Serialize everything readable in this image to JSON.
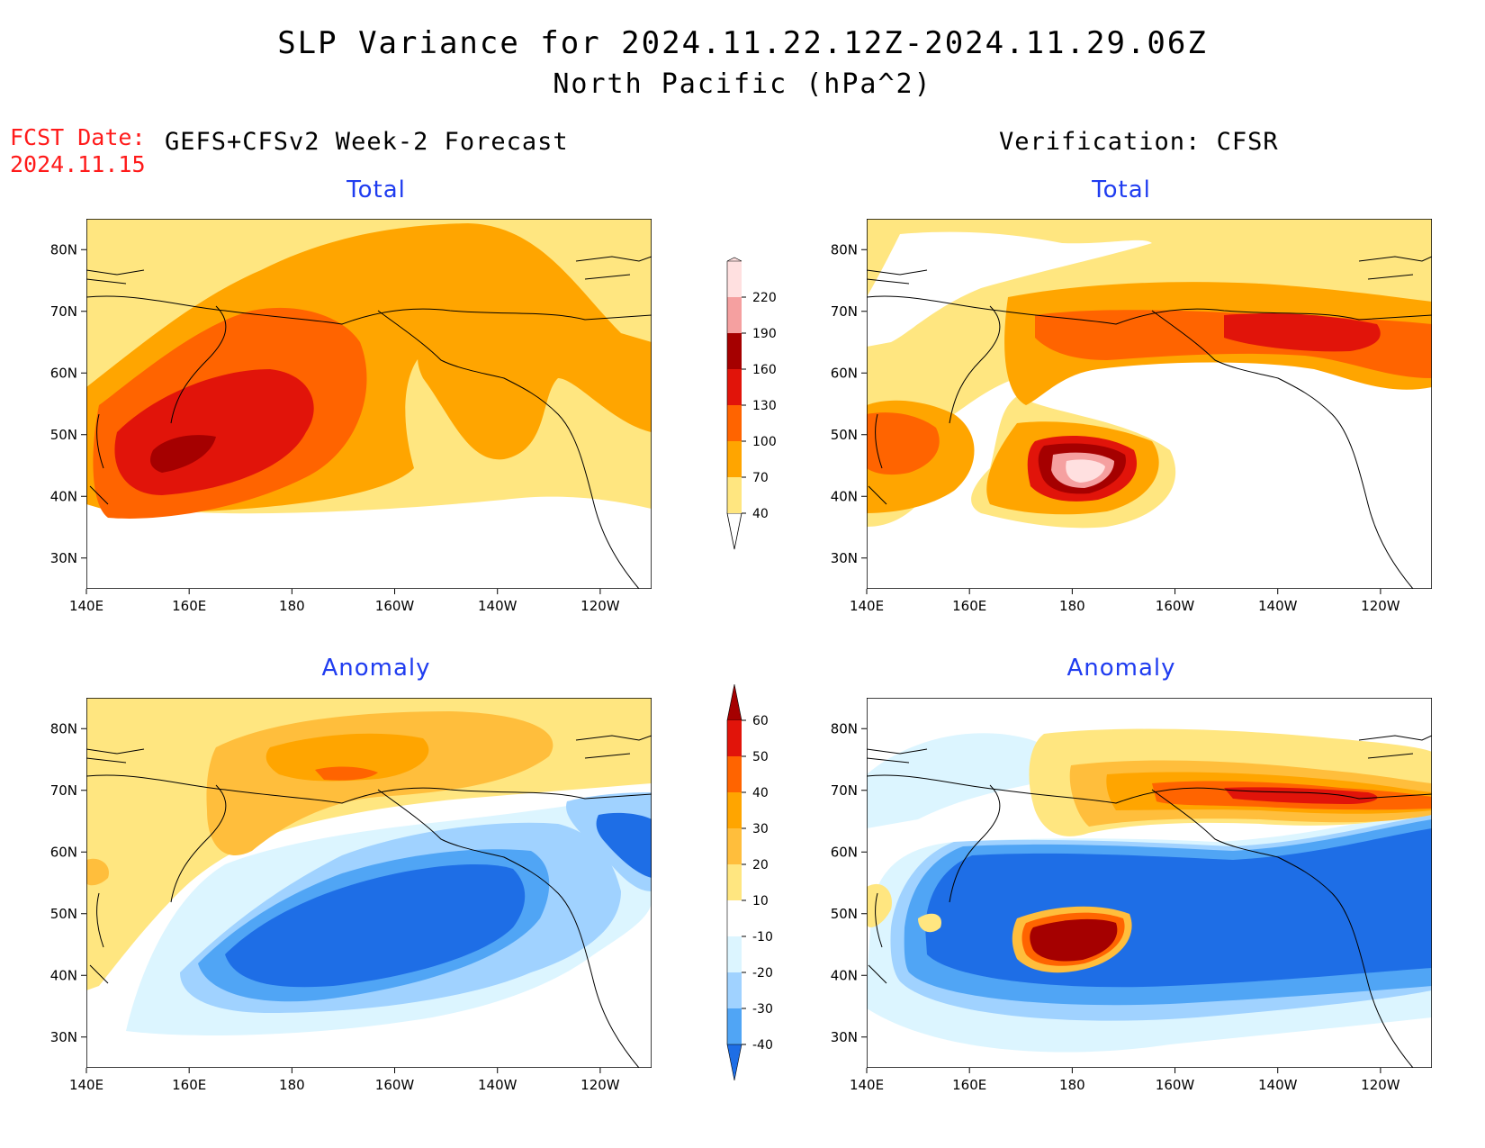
{
  "title": {
    "line1": "SLP Variance for 2024.11.22.12Z-2024.11.29.06Z",
    "line2": "North Pacific (hPa^2)"
  },
  "fcst": {
    "label": "FCST Date:",
    "date": "2024.11.15"
  },
  "columns": {
    "left": "GEFS+CFSv2 Week-2 Forecast",
    "right": "Verification: CFSR"
  },
  "panels": [
    {
      "title": "Total"
    },
    {
      "title": "Total"
    },
    {
      "title": "Anomaly"
    },
    {
      "title": "Anomaly"
    }
  ],
  "axes": {
    "lat_labels": [
      "80N",
      "70N",
      "60N",
      "50N",
      "40N",
      "30N"
    ],
    "lon_labels": [
      "140E",
      "160E",
      "180",
      "160W",
      "140W",
      "120W"
    ]
  },
  "colorbars": {
    "total": {
      "levels": [
        "40",
        "70",
        "100",
        "130",
        "160",
        "190",
        "220"
      ],
      "colors": [
        "#ffe680",
        "#ffa500",
        "#ff6400",
        "#e1140a",
        "#a50000",
        "#f5a0a0",
        "#ffe0e0"
      ]
    },
    "anomaly": {
      "levels": [
        "60",
        "50",
        "40",
        "30",
        "20",
        "10",
        "-10",
        "-20",
        "-30",
        "-40"
      ],
      "colors": [
        "#a50000",
        "#e1140a",
        "#ff6400",
        "#ffa500",
        "#ffbe3c",
        "#ffe680",
        "#ffffff",
        "#dcf5ff",
        "#a0d2ff",
        "#50a5f5",
        "#1e6ee6"
      ]
    }
  },
  "colors": {
    "title_blue": "#1f3cf0",
    "fcst_red": "#ff1a1a"
  }
}
